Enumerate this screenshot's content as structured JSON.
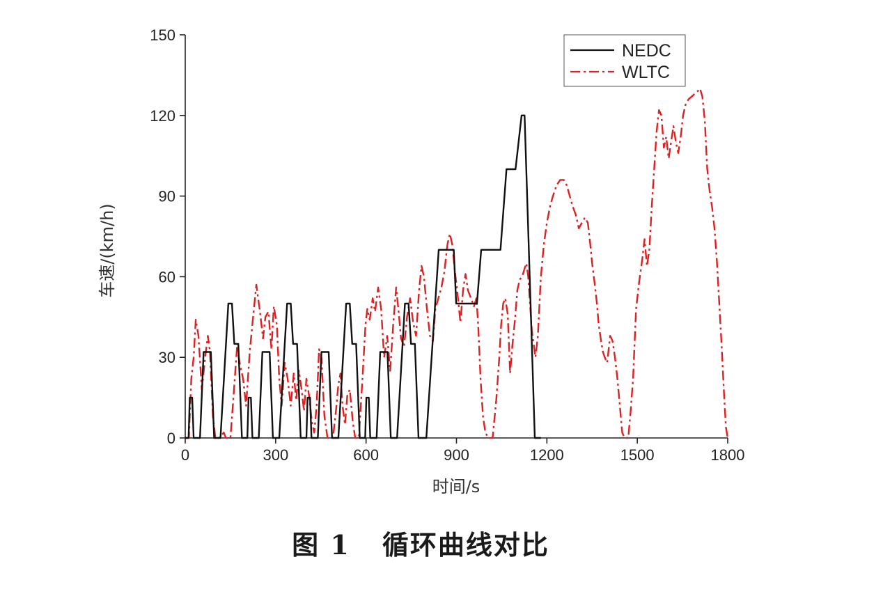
{
  "caption": {
    "label": "图 1",
    "text": "循环曲线对比"
  },
  "chart_data": {
    "type": "line",
    "title": "",
    "xlabel": "时间/s",
    "ylabel": "车速/(km/h)",
    "xlim": [
      0,
      1800
    ],
    "ylim": [
      0,
      150
    ],
    "xticks": [
      0,
      300,
      600,
      900,
      1200,
      1500,
      1800
    ],
    "yticks": [
      0,
      30,
      60,
      90,
      120,
      150
    ],
    "legend_position": "top-right",
    "series": [
      {
        "name": "NEDC",
        "color": "#111111",
        "style": "solid",
        "points": [
          [
            0,
            0
          ],
          [
            11,
            0
          ],
          [
            15,
            15
          ],
          [
            23,
            15
          ],
          [
            28,
            0
          ],
          [
            49,
            0
          ],
          [
            61,
            32
          ],
          [
            85,
            32
          ],
          [
            96,
            0
          ],
          [
            117,
            0
          ],
          [
            143,
            50
          ],
          [
            155,
            50
          ],
          [
            163,
            35
          ],
          [
            176,
            35
          ],
          [
            188,
            0
          ],
          [
            195,
            0
          ],
          [
            206,
            0
          ],
          [
            210,
            15
          ],
          [
            218,
            15
          ],
          [
            223,
            0
          ],
          [
            244,
            0
          ],
          [
            256,
            32
          ],
          [
            280,
            32
          ],
          [
            291,
            0
          ],
          [
            312,
            0
          ],
          [
            338,
            50
          ],
          [
            350,
            50
          ],
          [
            358,
            35
          ],
          [
            371,
            35
          ],
          [
            383,
            0
          ],
          [
            390,
            0
          ],
          [
            402,
            0
          ],
          [
            406,
            15
          ],
          [
            414,
            15
          ],
          [
            419,
            0
          ],
          [
            440,
            0
          ],
          [
            452,
            32
          ],
          [
            476,
            32
          ],
          [
            487,
            0
          ],
          [
            508,
            0
          ],
          [
            534,
            50
          ],
          [
            546,
            50
          ],
          [
            554,
            35
          ],
          [
            567,
            35
          ],
          [
            579,
            0
          ],
          [
            586,
            0
          ],
          [
            597,
            0
          ],
          [
            601,
            15
          ],
          [
            609,
            15
          ],
          [
            614,
            0
          ],
          [
            635,
            0
          ],
          [
            647,
            32
          ],
          [
            671,
            32
          ],
          [
            682,
            0
          ],
          [
            703,
            0
          ],
          [
            729,
            50
          ],
          [
            741,
            50
          ],
          [
            749,
            35
          ],
          [
            762,
            35
          ],
          [
            774,
            0
          ],
          [
            781,
            0
          ],
          [
            800,
            0
          ],
          [
            841,
            70
          ],
          [
            891,
            70
          ],
          [
            899,
            50
          ],
          [
            968,
            50
          ],
          [
            982,
            70
          ],
          [
            1046,
            70
          ],
          [
            1066,
            100
          ],
          [
            1096,
            100
          ],
          [
            1116,
            120
          ],
          [
            1126,
            120
          ],
          [
            1160,
            0
          ],
          [
            1180,
            0
          ]
        ]
      },
      {
        "name": "WLTC",
        "color": "#e02020",
        "style": "dashdot",
        "points": [
          [
            0,
            0
          ],
          [
            12,
            0
          ],
          [
            20,
            22
          ],
          [
            28,
            30
          ],
          [
            35,
            44
          ],
          [
            44,
            38
          ],
          [
            55,
            18
          ],
          [
            66,
            30
          ],
          [
            75,
            38
          ],
          [
            82,
            32
          ],
          [
            92,
            8
          ],
          [
            100,
            0
          ],
          [
            112,
            0
          ],
          [
            128,
            2
          ],
          [
            135,
            0
          ],
          [
            150,
            0
          ],
          [
            160,
            15
          ],
          [
            172,
            34
          ],
          [
            182,
            27
          ],
          [
            192,
            22
          ],
          [
            202,
            12
          ],
          [
            214,
            32
          ],
          [
            226,
            46
          ],
          [
            236,
            57
          ],
          [
            248,
            47
          ],
          [
            258,
            37
          ],
          [
            266,
            45
          ],
          [
            276,
            47
          ],
          [
            286,
            33
          ],
          [
            294,
            49
          ],
          [
            304,
            42
          ],
          [
            312,
            22
          ],
          [
            320,
            12
          ],
          [
            330,
            28
          ],
          [
            340,
            22
          ],
          [
            350,
            12
          ],
          [
            360,
            24
          ],
          [
            368,
            14
          ],
          [
            377,
            25
          ],
          [
            386,
            18
          ],
          [
            394,
            10
          ],
          [
            402,
            22
          ],
          [
            412,
            15
          ],
          [
            420,
            6
          ],
          [
            428,
            2
          ],
          [
            436,
            12
          ],
          [
            444,
            33
          ],
          [
            452,
            30
          ],
          [
            462,
            8
          ],
          [
            472,
            0
          ],
          [
            490,
            0
          ],
          [
            500,
            10
          ],
          [
            508,
            20
          ],
          [
            515,
            24
          ],
          [
            522,
            12
          ],
          [
            530,
            5
          ],
          [
            538,
            16
          ],
          [
            546,
            18
          ],
          [
            556,
            6
          ],
          [
            564,
            0
          ],
          [
            576,
            0
          ],
          [
            588,
            22
          ],
          [
            598,
            42
          ],
          [
            604,
            48
          ],
          [
            612,
            44
          ],
          [
            622,
            52
          ],
          [
            630,
            47
          ],
          [
            640,
            56
          ],
          [
            650,
            48
          ],
          [
            660,
            30
          ],
          [
            670,
            38
          ],
          [
            680,
            25
          ],
          [
            690,
            42
          ],
          [
            700,
            56
          ],
          [
            708,
            47
          ],
          [
            716,
            37
          ],
          [
            726,
            34
          ],
          [
            736,
            45
          ],
          [
            746,
            52
          ],
          [
            756,
            43
          ],
          [
            766,
            38
          ],
          [
            776,
            55
          ],
          [
            784,
            64
          ],
          [
            792,
            60
          ],
          [
            802,
            48
          ],
          [
            812,
            38
          ],
          [
            822,
            36
          ],
          [
            830,
            48
          ],
          [
            840,
            52
          ],
          [
            850,
            56
          ],
          [
            860,
            62
          ],
          [
            870,
            72
          ],
          [
            878,
            76
          ],
          [
            886,
            72
          ],
          [
            895,
            62
          ],
          [
            905,
            52
          ],
          [
            913,
            43
          ],
          [
            922,
            55
          ],
          [
            930,
            61
          ],
          [
            938,
            55
          ],
          [
            948,
            52
          ],
          [
            958,
            49
          ],
          [
            966,
            52
          ],
          [
            972,
            42
          ],
          [
            980,
            22
          ],
          [
            988,
            8
          ],
          [
            996,
            2
          ],
          [
            1006,
            0
          ],
          [
            1020,
            0
          ],
          [
            1032,
            14
          ],
          [
            1042,
            30
          ],
          [
            1048,
            42
          ],
          [
            1055,
            50
          ],
          [
            1062,
            52
          ],
          [
            1070,
            46
          ],
          [
            1078,
            24
          ],
          [
            1086,
            35
          ],
          [
            1094,
            44
          ],
          [
            1102,
            55
          ],
          [
            1110,
            59
          ],
          [
            1118,
            60
          ],
          [
            1126,
            63
          ],
          [
            1132,
            65
          ],
          [
            1138,
            60
          ],
          [
            1144,
            50
          ],
          [
            1150,
            40
          ],
          [
            1156,
            35
          ],
          [
            1162,
            30
          ],
          [
            1170,
            38
          ],
          [
            1180,
            60
          ],
          [
            1190,
            72
          ],
          [
            1200,
            80
          ],
          [
            1210,
            86
          ],
          [
            1220,
            90
          ],
          [
            1232,
            94
          ],
          [
            1244,
            96
          ],
          [
            1256,
            96
          ],
          [
            1266,
            94
          ],
          [
            1276,
            90
          ],
          [
            1286,
            86
          ],
          [
            1296,
            83
          ],
          [
            1306,
            78
          ],
          [
            1316,
            80
          ],
          [
            1326,
            82
          ],
          [
            1336,
            80
          ],
          [
            1344,
            72
          ],
          [
            1350,
            65
          ],
          [
            1358,
            58
          ],
          [
            1366,
            50
          ],
          [
            1372,
            42
          ],
          [
            1380,
            36
          ],
          [
            1386,
            32
          ],
          [
            1392,
            30
          ],
          [
            1400,
            28
          ],
          [
            1410,
            38
          ],
          [
            1418,
            36
          ],
          [
            1426,
            30
          ],
          [
            1434,
            22
          ],
          [
            1442,
            12
          ],
          [
            1450,
            2
          ],
          [
            1458,
            0
          ],
          [
            1470,
            0
          ],
          [
            1478,
            10
          ],
          [
            1486,
            22
          ],
          [
            1496,
            48
          ],
          [
            1506,
            58
          ],
          [
            1516,
            66
          ],
          [
            1524,
            74
          ],
          [
            1532,
            64
          ],
          [
            1540,
            70
          ],
          [
            1548,
            86
          ],
          [
            1556,
            100
          ],
          [
            1564,
            114
          ],
          [
            1572,
            122
          ],
          [
            1580,
            120
          ],
          [
            1588,
            108
          ],
          [
            1596,
            112
          ],
          [
            1604,
            104
          ],
          [
            1612,
            110
          ],
          [
            1620,
            116
          ],
          [
            1628,
            110
          ],
          [
            1636,
            106
          ],
          [
            1644,
            112
          ],
          [
            1652,
            120
          ],
          [
            1660,
            124
          ],
          [
            1670,
            126
          ],
          [
            1680,
            127
          ],
          [
            1690,
            128
          ],
          [
            1700,
            129
          ],
          [
            1708,
            130
          ],
          [
            1716,
            127
          ],
          [
            1724,
            118
          ],
          [
            1732,
            100
          ],
          [
            1740,
            92
          ],
          [
            1748,
            86
          ],
          [
            1756,
            78
          ],
          [
            1764,
            66
          ],
          [
            1772,
            50
          ],
          [
            1780,
            34
          ],
          [
            1788,
            16
          ],
          [
            1794,
            4
          ],
          [
            1800,
            0
          ]
        ]
      }
    ]
  }
}
